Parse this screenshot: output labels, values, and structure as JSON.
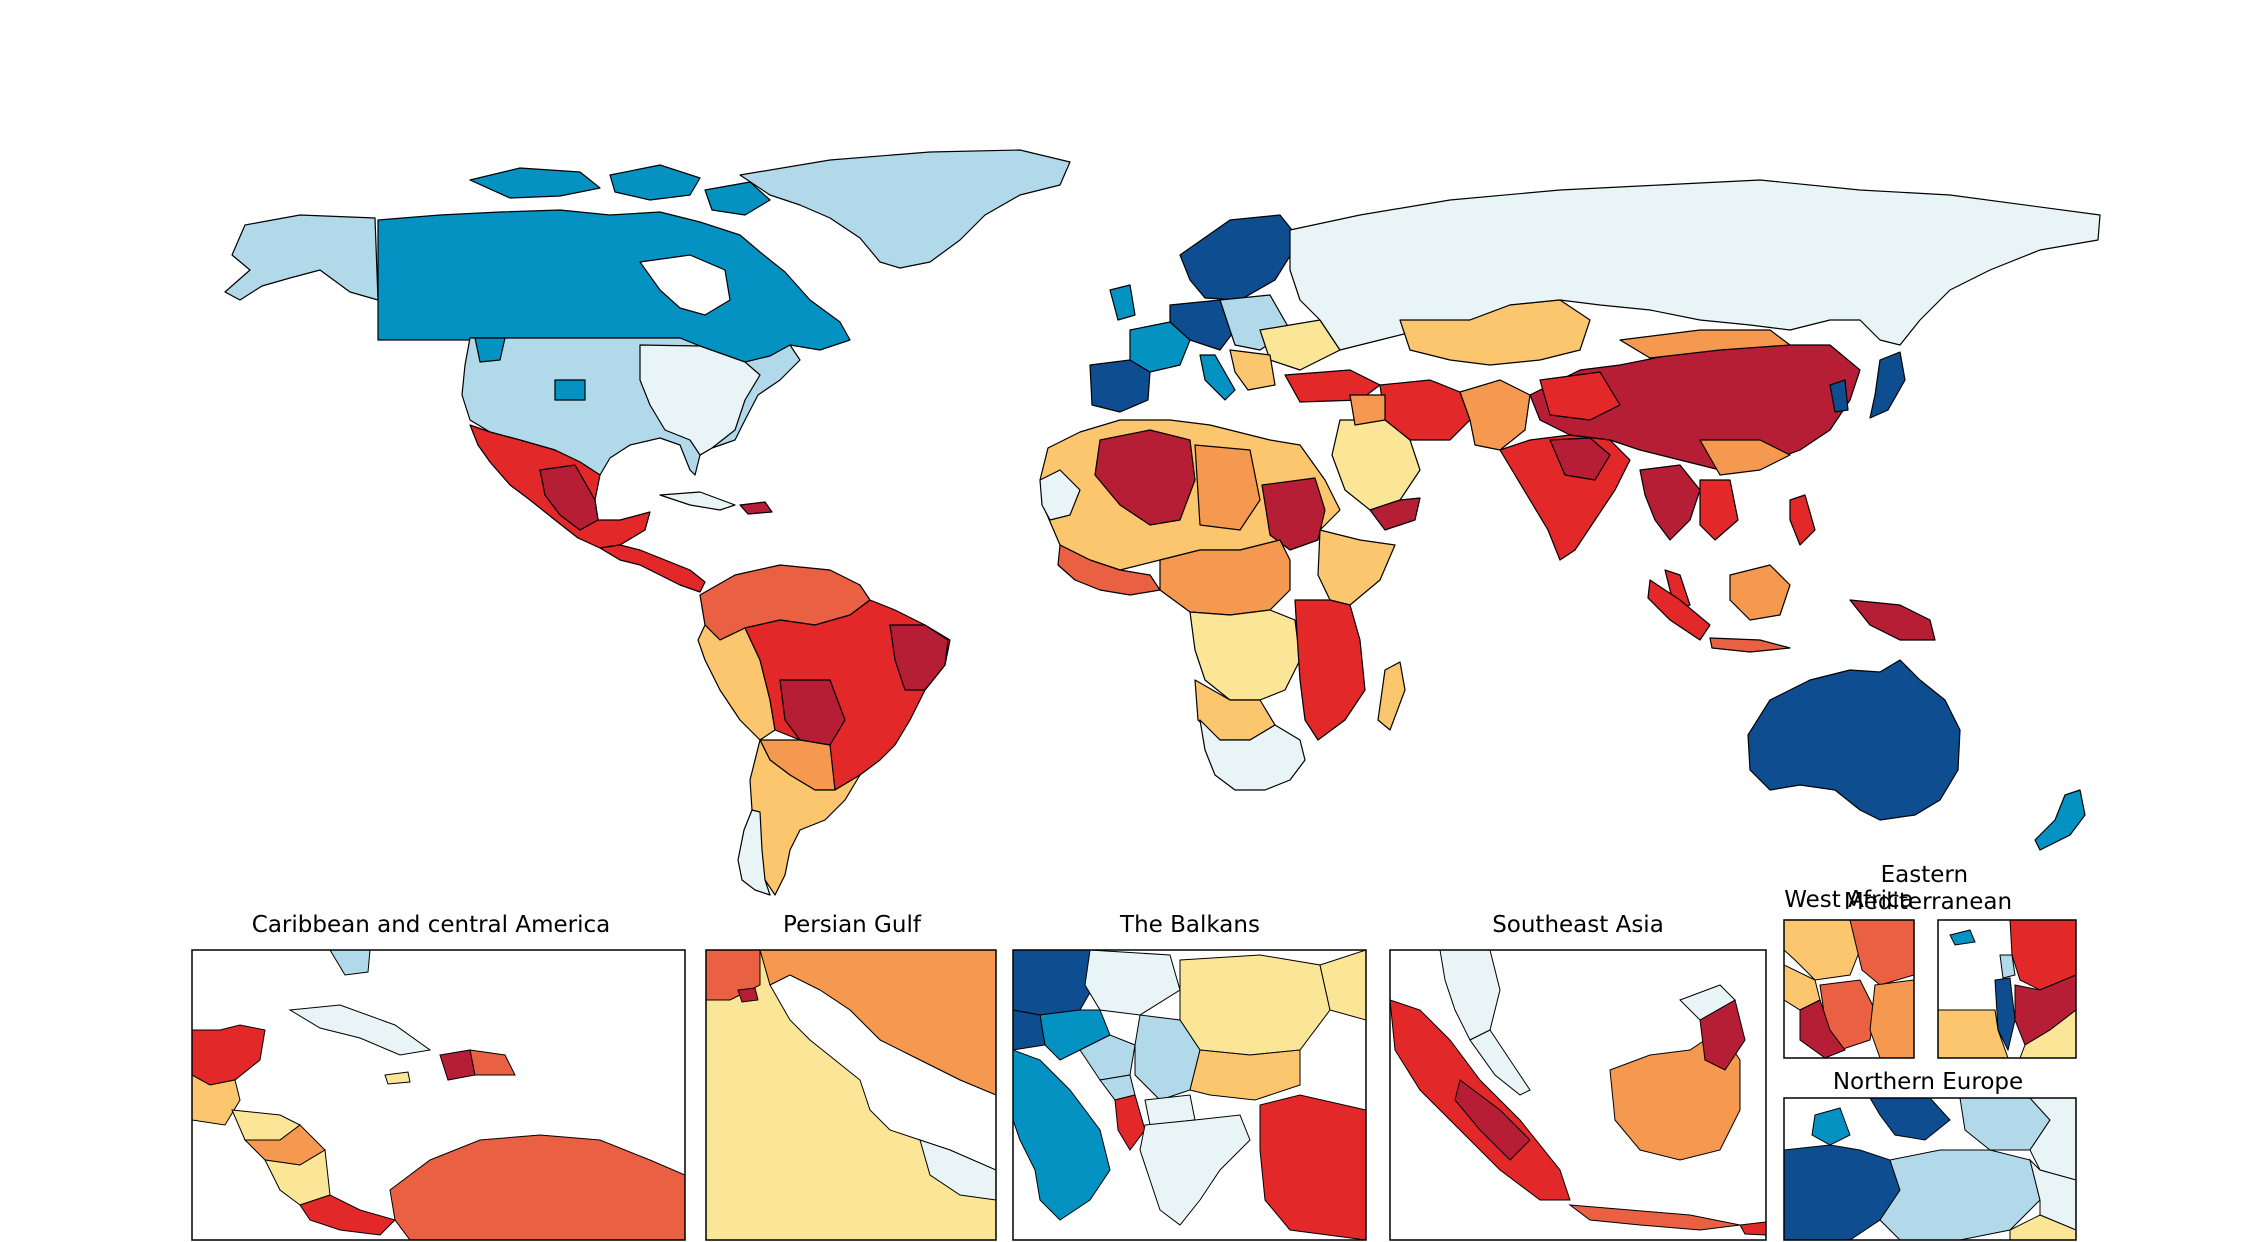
{
  "insets": {
    "caribbean": "Caribbean and central America",
    "gulf": "Persian Gulf",
    "balkans": "The Balkans",
    "se_asia": "Southeast Asia",
    "west_africa": "West Africa",
    "east_med": "Eastern\nMediterranean",
    "north_europe": "Northern Europe"
  },
  "palette": {
    "dark_blue": "#0e4d8f",
    "blue": "#0492c2",
    "light_blue": "#b2d9ea",
    "pale": "#e8f4f5",
    "yellow": "#fbe596",
    "light_orange": "#fcc66e",
    "orange": "#f4994f",
    "orange_red": "#ea6042",
    "red": "#e22828",
    "dark_red": "#b51e35",
    "border": "#000000",
    "ocean": "#ffffff"
  }
}
